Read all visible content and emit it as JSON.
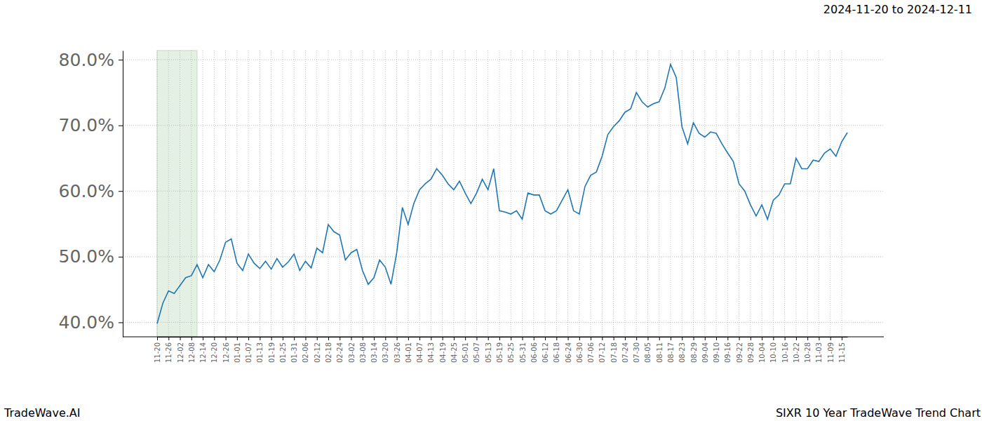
{
  "chart_data": {
    "type": "line",
    "title": "SIXR 10 Year TradeWave Trend Chart",
    "subtitle": "2024-11-20 to 2024-12-11",
    "annotations": [
      "TradeWave.AI"
    ],
    "categories": [
      "11-20",
      null,
      "11-26",
      null,
      "12-02",
      null,
      "12-08",
      null,
      "12-14",
      null,
      "12-20",
      null,
      "12-26",
      null,
      "01-01",
      null,
      "01-07",
      null,
      "01-13",
      null,
      "01-19",
      null,
      "01-25",
      null,
      "01-31",
      null,
      "02-06",
      null,
      "02-12",
      null,
      "02-18",
      null,
      "02-24",
      null,
      "03-02",
      null,
      "03-08",
      null,
      "03-14",
      null,
      "03-20",
      null,
      "03-26",
      null,
      "04-01",
      null,
      "04-07",
      null,
      "04-13",
      null,
      "04-19",
      null,
      "04-25",
      null,
      "05-01",
      null,
      "05-07",
      null,
      "05-13",
      null,
      "05-19",
      null,
      "05-25",
      null,
      "05-31",
      null,
      "06-06",
      null,
      "06-12",
      null,
      "06-18",
      null,
      "06-24",
      null,
      "06-30",
      null,
      "07-06",
      null,
      "07-12",
      null,
      "07-18",
      null,
      "07-24",
      null,
      "07-30",
      null,
      "08-05",
      null,
      "08-11",
      null,
      "08-17",
      null,
      "08-23",
      null,
      "08-29",
      null,
      "09-04",
      null,
      "09-10",
      null,
      "09-16",
      null,
      "09-22",
      null,
      "09-28",
      null,
      "10-04",
      null,
      "10-10",
      null,
      "10-16",
      null,
      "10-22",
      null,
      "10-28",
      null,
      "11-03",
      null,
      "11-09",
      null,
      "11-15",
      null
    ],
    "values": [
      39.8,
      42.9,
      44.8,
      44.4,
      45.6,
      46.8,
      47.1,
      48.8,
      46.8,
      48.8,
      47.7,
      49.5,
      52.2,
      52.7,
      49.0,
      47.9,
      50.4,
      49.0,
      48.2,
      49.3,
      48.1,
      49.7,
      48.4,
      49.2,
      50.4,
      47.9,
      49.3,
      48.3,
      51.3,
      50.6,
      54.9,
      53.8,
      53.3,
      49.5,
      50.6,
      51.1,
      47.9,
      45.8,
      46.8,
      49.5,
      48.4,
      45.8,
      50.6,
      57.5,
      54.9,
      58.1,
      60.2,
      61.1,
      61.8,
      63.4,
      62.4,
      61.1,
      60.2,
      61.5,
      59.7,
      58.1,
      59.7,
      61.8,
      60.2,
      63.4,
      57.0,
      56.8,
      56.5,
      57.0,
      55.7,
      59.7,
      59.4,
      59.4,
      57.0,
      56.5,
      57.0,
      58.6,
      60.2,
      57.0,
      56.5,
      60.7,
      62.4,
      62.9,
      65.3,
      68.6,
      69.8,
      70.7,
      72.0,
      72.5,
      75.0,
      73.6,
      72.8,
      73.3,
      73.6,
      75.7,
      79.3,
      77.3,
      69.8,
      67.2,
      70.4,
      68.8,
      68.2,
      69.0,
      68.8,
      67.2,
      65.8,
      64.5,
      61.1,
      60.0,
      57.9,
      56.2,
      57.9,
      55.7,
      58.6,
      59.4,
      61.1,
      61.1,
      65.0,
      63.4,
      63.4,
      64.7,
      64.5,
      65.8,
      66.4,
      65.3,
      67.5,
      68.9
    ],
    "color": "#1f77b4",
    "highlight": {
      "start": 0,
      "end": 7
    },
    "ylim": [
      37.8,
      81.4
    ],
    "yticks": [
      {
        "value": 40,
        "label": "40.0%"
      },
      {
        "value": 50,
        "label": "50.0%"
      },
      {
        "value": 60,
        "label": "60.0%"
      },
      {
        "value": 70,
        "label": "70.0%"
      },
      {
        "value": 80,
        "label": "80.0%"
      }
    ],
    "grid": true
  }
}
